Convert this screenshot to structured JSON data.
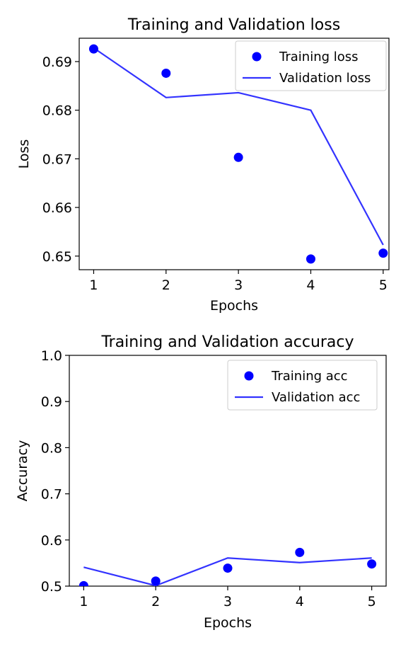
{
  "chart_data": [
    {
      "type": "line",
      "title": "Training and Validation loss",
      "xlabel": "Epochs",
      "ylabel": "Loss",
      "x": [
        1,
        2,
        3,
        4,
        5
      ],
      "xticks": [
        "1",
        "2",
        "3",
        "4",
        "5"
      ],
      "xlim": [
        0.8,
        5.08
      ],
      "yticks": [
        "0.65",
        "0.66",
        "0.67",
        "0.68",
        "0.69"
      ],
      "ytick_values": [
        0.65,
        0.66,
        0.67,
        0.68,
        0.69
      ],
      "ylim": [
        0.6472,
        0.6948
      ],
      "legend_position": "top-right",
      "grid": false,
      "series": [
        {
          "name": "Training loss",
          "style": "scatter",
          "color": "#0000ff",
          "values": [
            0.6926,
            0.6876,
            0.6703,
            0.6494,
            0.6506
          ]
        },
        {
          "name": "Validation loss",
          "style": "line",
          "color": "#3333ff",
          "values": [
            0.6928,
            0.6826,
            0.6836,
            0.68,
            0.6523
          ]
        }
      ]
    },
    {
      "type": "line",
      "title": "Training and Validation accuracy",
      "xlabel": "Epochs",
      "ylabel": "Accuracy",
      "x": [
        1,
        2,
        3,
        4,
        5
      ],
      "xticks": [
        "1",
        "2",
        "3",
        "4",
        "5"
      ],
      "xlim": [
        0.8,
        5.2
      ],
      "yticks": [
        "0.5",
        "0.6",
        "0.7",
        "0.8",
        "0.9",
        "1.0"
      ],
      "ytick_values": [
        0.5,
        0.6,
        0.7,
        0.8,
        0.9,
        1.0
      ],
      "ylim": [
        0.5,
        1.0
      ],
      "legend_position": "top-right",
      "grid": false,
      "series": [
        {
          "name": "Training acc",
          "style": "scatter",
          "color": "#0000ff",
          "values": [
            0.501,
            0.511,
            0.539,
            0.573,
            0.548
          ]
        },
        {
          "name": "Validation acc",
          "style": "line",
          "color": "#3333ff",
          "values": [
            0.541,
            0.501,
            0.561,
            0.551,
            0.561
          ]
        }
      ]
    }
  ]
}
